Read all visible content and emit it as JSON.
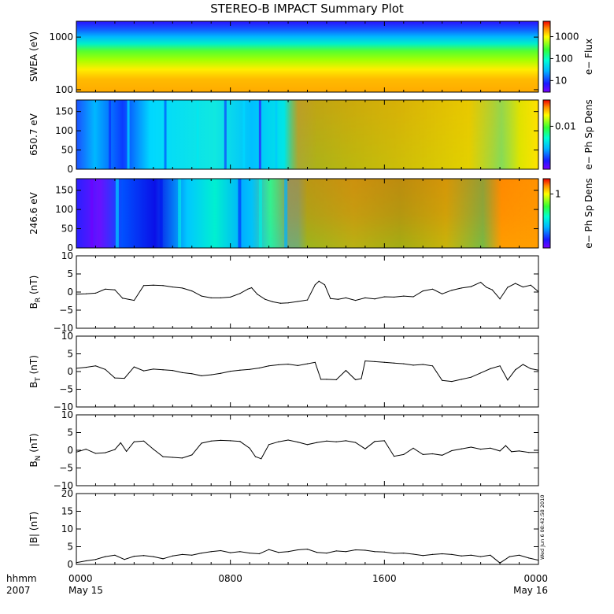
{
  "title": "STEREO-B IMPACT Summary Plot",
  "timestamp": "Wed Jun  6 08:42:58 2010",
  "xaxis": {
    "row1_label": "hhmm",
    "row2_label": "2007",
    "ticks": [
      {
        "hours": 0,
        "label": "0000",
        "sublabel": "May 15"
      },
      {
        "hours": 8,
        "label": "0800",
        "sublabel": ""
      },
      {
        "hours": 16,
        "label": "1600",
        "sublabel": ""
      },
      {
        "hours": 24,
        "label": "0000",
        "sublabel": "May 16"
      }
    ],
    "range_hours": [
      0,
      24
    ]
  },
  "chart_data": [
    {
      "id": "swea",
      "type": "heatmap",
      "ylabel": "SWEA (eV)",
      "ylim": [
        90,
        2000
      ],
      "yscale": "log",
      "yticks": [
        {
          "v": 100,
          "t": "100"
        },
        {
          "v": 1000,
          "t": "1000"
        }
      ],
      "colorbar": {
        "label": "e− Flux",
        "scale": "log",
        "range": [
          3,
          5000
        ],
        "ticks": [
          {
            "v": 10,
            "t": "10"
          },
          {
            "v": 100,
            "t": "100"
          },
          {
            "v": 1000,
            "t": "1000"
          }
        ]
      },
      "palette": "rainbow"
    },
    {
      "id": "pad650",
      "type": "heatmap",
      "ylabel": "650.7 eV",
      "ylim": [
        0,
        180
      ],
      "yscale": "linear",
      "yticks": [
        {
          "v": 0,
          "t": "0"
        },
        {
          "v": 50,
          "t": "50"
        },
        {
          "v": 100,
          "t": "100"
        },
        {
          "v": 150,
          "t": "150"
        }
      ],
      "colorbar": {
        "label": "e− Ph Sp Dens",
        "ticks": [
          {
            "v": 0.62,
            "t": "0.01"
          }
        ]
      },
      "palette": "rainbow"
    },
    {
      "id": "pad246",
      "type": "heatmap",
      "ylabel": "246.6 eV",
      "ylim": [
        0,
        180
      ],
      "yscale": "linear",
      "yticks": [
        {
          "v": 0,
          "t": "0"
        },
        {
          "v": 50,
          "t": "50"
        },
        {
          "v": 100,
          "t": "100"
        },
        {
          "v": 150,
          "t": "150"
        }
      ],
      "colorbar": {
        "label": "e− Ph Sp Dens",
        "ticks": [
          {
            "v": 0.78,
            "t": "1"
          }
        ]
      },
      "palette": "rainbow"
    },
    {
      "id": "br",
      "type": "line",
      "ylabel": "B",
      "ylabel_sub": "R",
      "ylabel_unit": " (nT)",
      "ylim": [
        -10,
        10
      ],
      "yticks": [
        {
          "v": -10,
          "t": "−10"
        },
        {
          "v": -5,
          "t": "−5"
        },
        {
          "v": 0,
          "t": "0"
        },
        {
          "v": 5,
          "t": "5"
        },
        {
          "v": 10,
          "t": "10"
        }
      ],
      "x": [
        0,
        0.5,
        1,
        1.5,
        2,
        2.4,
        3,
        3.5,
        4,
        4.5,
        5,
        5.5,
        6,
        6.5,
        7,
        7.5,
        8,
        8.5,
        8.9,
        9.1,
        9.4,
        9.8,
        10.2,
        10.6,
        11,
        11.5,
        12,
        12.4,
        12.6,
        12.9,
        13.2,
        13.6,
        14,
        14.5,
        15,
        15.5,
        16,
        16.5,
        17,
        17.5,
        18,
        18.5,
        19,
        19.5,
        20,
        20.5,
        21,
        21.3,
        21.6,
        22,
        22.4,
        22.8,
        23.2,
        23.6,
        24
      ],
      "y": [
        -0.6,
        -0.5,
        -0.3,
        0.8,
        0.6,
        -1.7,
        -2.3,
        1.8,
        1.9,
        1.8,
        1.4,
        1.1,
        0.3,
        -1.1,
        -1.6,
        -1.6,
        -1.4,
        -0.4,
        0.8,
        1.2,
        -0.6,
        -2.0,
        -2.7,
        -3.1,
        -3.0,
        -2.6,
        -2.2,
        2.0,
        3.0,
        2.0,
        -1.8,
        -2.0,
        -1.6,
        -2.3,
        -1.6,
        -1.9,
        -1.3,
        -1.4,
        -1.1,
        -1.3,
        0.3,
        0.8,
        -0.5,
        0.5,
        1.1,
        1.5,
        2.7,
        1.3,
        0.6,
        -1.9,
        1.3,
        2.4,
        1.4,
        1.9,
        0.1
      ]
    },
    {
      "id": "bt",
      "type": "line",
      "ylabel": "B",
      "ylabel_sub": "T",
      "ylabel_unit": " (nT)",
      "ylim": [
        -10,
        10
      ],
      "yticks": [
        {
          "v": -10,
          "t": "−10"
        },
        {
          "v": -5,
          "t": "−5"
        },
        {
          "v": 0,
          "t": "0"
        },
        {
          "v": 5,
          "t": "5"
        },
        {
          "v": 10,
          "t": "10"
        }
      ],
      "x": [
        0,
        0.5,
        1,
        1.5,
        2,
        2.5,
        3,
        3.5,
        4,
        4.5,
        5,
        5.5,
        6,
        6.5,
        7,
        7.5,
        8,
        8.5,
        9,
        9.5,
        10,
        10.5,
        11,
        11.5,
        12,
        12.4,
        12.7,
        13,
        13.5,
        14,
        14.5,
        14.8,
        15,
        15.5,
        16,
        16.5,
        17,
        17.5,
        18,
        18.5,
        19,
        19.5,
        20,
        20.5,
        21,
        21.5,
        22,
        22.4,
        22.8,
        23.2,
        23.6,
        24
      ],
      "y": [
        0.9,
        1.2,
        1.6,
        0.6,
        -1.8,
        -1.9,
        1.3,
        0.2,
        0.7,
        0.5,
        0.3,
        -0.3,
        -0.6,
        -1.2,
        -0.9,
        -0.5,
        0.1,
        0.4,
        0.6,
        1.0,
        1.6,
        1.9,
        2.1,
        1.7,
        2.2,
        2.6,
        -2.2,
        -2.2,
        -2.3,
        0.3,
        -2.3,
        -2.0,
        3.0,
        2.8,
        2.6,
        2.4,
        2.2,
        1.8,
        2.0,
        1.6,
        -2.5,
        -2.8,
        -2.2,
        -1.6,
        -0.4,
        0.8,
        1.6,
        -2.4,
        0.5,
        2.0,
        0.8,
        0.4
      ]
    },
    {
      "id": "bn",
      "type": "line",
      "ylabel": "B",
      "ylabel_sub": "N",
      "ylabel_unit": " (nT)",
      "ylim": [
        -10,
        10
      ],
      "yticks": [
        {
          "v": -10,
          "t": "−10"
        },
        {
          "v": -5,
          "t": "−5"
        },
        {
          "v": 0,
          "t": "0"
        },
        {
          "v": 5,
          "t": "5"
        },
        {
          "v": 10,
          "t": "10"
        }
      ],
      "x": [
        0,
        0.5,
        1,
        1.5,
        2,
        2.3,
        2.6,
        3,
        3.5,
        4,
        4.5,
        5,
        5.5,
        6,
        6.5,
        7,
        7.5,
        8,
        8.5,
        9,
        9.3,
        9.6,
        10,
        10.5,
        11,
        11.5,
        12,
        12.5,
        13,
        13.5,
        14,
        14.5,
        15,
        15.5,
        16,
        16.5,
        17,
        17.5,
        18,
        18.5,
        19,
        19.5,
        20,
        20.5,
        21,
        21.5,
        22,
        22.3,
        22.6,
        23,
        23.5,
        24
      ],
      "y": [
        -0.5,
        0.3,
        -0.9,
        -0.7,
        0.2,
        2.1,
        -0.3,
        2.4,
        2.6,
        0.3,
        -1.8,
        -2.0,
        -2.2,
        -1.3,
        2.0,
        2.6,
        2.8,
        2.7,
        2.5,
        0.6,
        -1.8,
        -2.4,
        1.6,
        2.4,
        2.9,
        2.3,
        1.6,
        2.2,
        2.6,
        2.4,
        2.7,
        2.2,
        0.4,
        2.5,
        2.7,
        -1.7,
        -1.2,
        0.6,
        -1.2,
        -1.0,
        -1.4,
        -0.1,
        0.4,
        0.9,
        0.3,
        0.6,
        -0.2,
        1.3,
        -0.4,
        -0.2,
        -0.6,
        -0.6
      ]
    },
    {
      "id": "bmag",
      "type": "line",
      "ylabel": "|B| (nT)",
      "ylim": [
        0,
        20
      ],
      "yticks": [
        {
          "v": 0,
          "t": "0"
        },
        {
          "v": 5,
          "t": "5"
        },
        {
          "v": 10,
          "t": "10"
        },
        {
          "v": 15,
          "t": "15"
        },
        {
          "v": 20,
          "t": "20"
        }
      ],
      "x": [
        0,
        0.5,
        1,
        1.5,
        2,
        2.5,
        3,
        3.5,
        4,
        4.5,
        5,
        5.5,
        6,
        6.5,
        7,
        7.5,
        8,
        8.5,
        9,
        9.5,
        10,
        10.5,
        11,
        11.5,
        12,
        12.5,
        13,
        13.5,
        14,
        14.5,
        15,
        15.5,
        16,
        16.5,
        17,
        17.5,
        18,
        18.5,
        19,
        19.5,
        20,
        20.5,
        21,
        21.5,
        22,
        22.5,
        23,
        23.5,
        24
      ],
      "y": [
        0.5,
        1.0,
        1.4,
        2.2,
        2.6,
        1.4,
        2.3,
        2.5,
        2.2,
        1.6,
        2.4,
        2.8,
        2.6,
        3.2,
        3.6,
        3.9,
        3.3,
        3.6,
        3.2,
        3.0,
        4.2,
        3.4,
        3.6,
        4.1,
        4.3,
        3.4,
        3.2,
        3.8,
        3.6,
        4.1,
        4.0,
        3.6,
        3.5,
        3.1,
        3.2,
        2.9,
        2.5,
        2.8,
        3.0,
        2.8,
        2.4,
        2.6,
        2.2,
        2.6,
        0.4,
        2.2,
        2.6,
        1.8,
        1.2
      ]
    }
  ]
}
